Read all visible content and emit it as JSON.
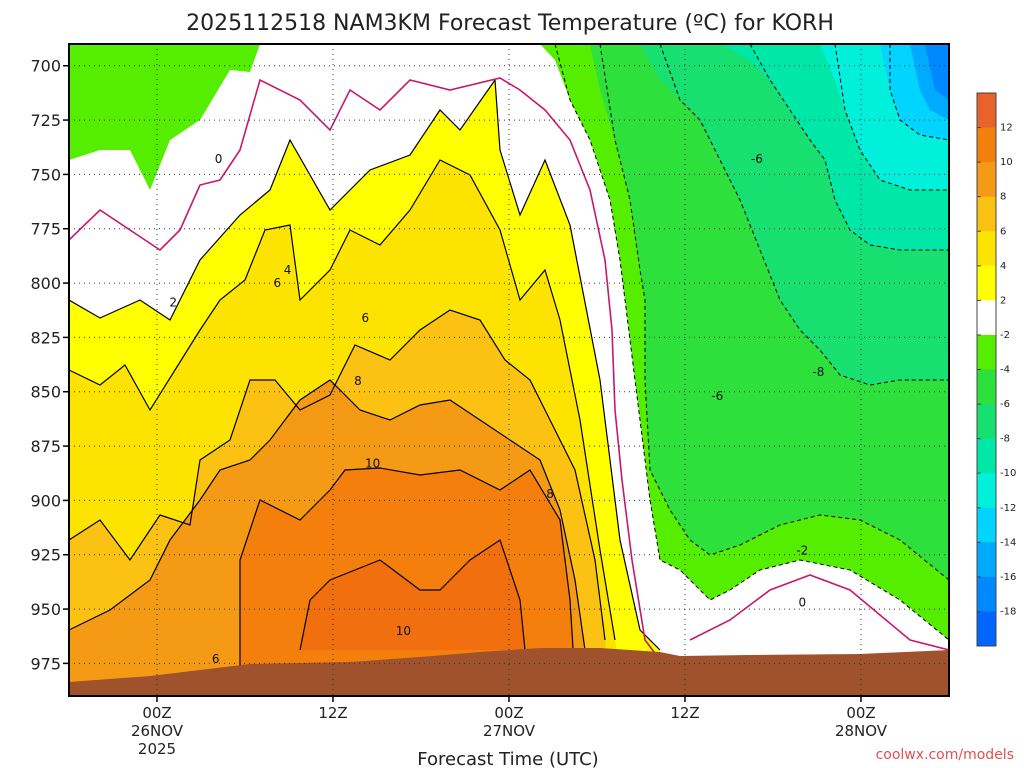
{
  "chart_data": {
    "type": "heatmap",
    "title": "2025112518 NAM3KM Forecast Temperature (ºC) for KORH",
    "xlabel": "Forecast Time (UTC)",
    "ylabel": "",
    "y_axis": {
      "ticks": [
        "700",
        "725",
        "750",
        "775",
        "800",
        "825",
        "850",
        "875",
        "900",
        "925",
        "950",
        "975"
      ],
      "range_hpa": [
        690,
        990
      ],
      "inverted": true
    },
    "x_axis": {
      "ticks": [
        {
          "line1": "00Z",
          "line2": "26NOV",
          "line3": "2025",
          "hours": 6
        },
        {
          "line1": "12Z",
          "line2": "",
          "line3": "",
          "hours": 18
        },
        {
          "line1": "00Z",
          "line2": "27NOV",
          "line3": "",
          "hours": 30
        },
        {
          "line1": "12Z",
          "line2": "",
          "line3": "",
          "hours": 42
        },
        {
          "line1": "00Z",
          "line2": "28NOV",
          "line3": "",
          "hours": 54
        }
      ],
      "range_hours": [
        0,
        60
      ]
    },
    "grid": true,
    "colorbar": {
      "placement": "right",
      "labels": [
        "12",
        "10",
        "8",
        "6",
        "4",
        "2",
        "-2",
        "-4",
        "-6",
        "-8",
        "-10",
        "-12",
        "-14",
        "-16",
        "-18"
      ],
      "colors": [
        "#e8622a",
        "#f57f0c",
        "#f59a14",
        "#fbc214",
        "#fde400",
        "#ffff00",
        "#ffffff",
        "#55ee00",
        "#2ee03c",
        "#18e070",
        "#00e8a8",
        "#00f0dc",
        "#00d4ff",
        "#00aaff",
        "#0088ff",
        "#0066ff"
      ]
    },
    "contour_labels": [
      {
        "text": "0",
        "hours": 10.2,
        "pressure": 743
      },
      {
        "text": "2",
        "hours": 7.1,
        "pressure": 809
      },
      {
        "text": "4",
        "hours": 14.9,
        "pressure": 794
      },
      {
        "text": "6",
        "hours": 14.2,
        "pressure": 800
      },
      {
        "text": "6",
        "hours": 20.2,
        "pressure": 816
      },
      {
        "text": "8",
        "hours": 19.7,
        "pressure": 845
      },
      {
        "text": "10",
        "hours": 20.7,
        "pressure": 883
      },
      {
        "text": "8",
        "hours": 32.8,
        "pressure": 897
      },
      {
        "text": "10",
        "hours": 22.8,
        "pressure": 960
      },
      {
        "text": "6",
        "hours": 10.0,
        "pressure": 973
      },
      {
        "text": "-6",
        "hours": 46.9,
        "pressure": 743
      },
      {
        "text": "-8",
        "hours": 51.1,
        "pressure": 841
      },
      {
        "text": "-6",
        "hours": 44.2,
        "pressure": 852
      },
      {
        "text": "-2",
        "hours": 50.0,
        "pressure": 923
      },
      {
        "text": "0",
        "hours": 50.0,
        "pressure": 947
      }
    ],
    "credit": "coolwx.com/models"
  }
}
